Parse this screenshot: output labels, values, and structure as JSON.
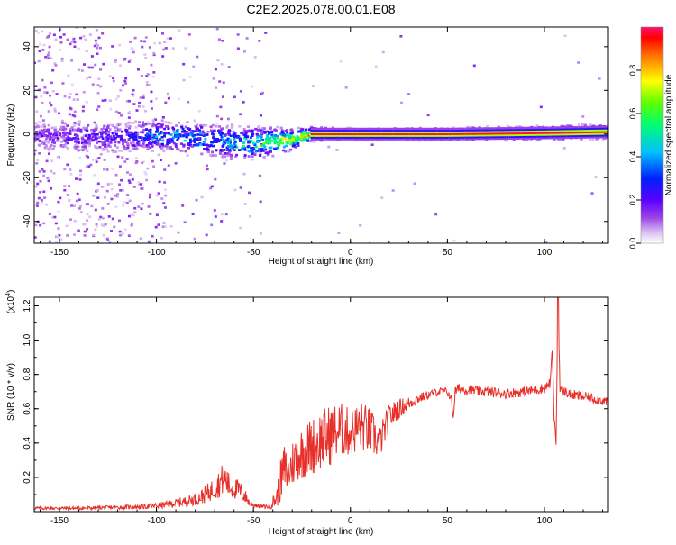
{
  "title": "C2E2.2025.078.00.01.E08",
  "chart_data": [
    {
      "type": "heatmap",
      "xlabel": "Height of straight line (km)",
      "ylabel": "Frequency (Hz)",
      "xlim": [
        -163,
        133
      ],
      "ylim": [
        -50,
        49
      ],
      "xticks": [
        -150,
        -100,
        -50,
        0,
        50,
        100
      ],
      "yticks": [
        -40,
        -20,
        0,
        20,
        40
      ],
      "colorbar": {
        "label": "Normalized spectral amplitude",
        "range": [
          0.0,
          1.0
        ],
        "ticks": [
          "0.0",
          "0.2",
          "0.4",
          "0.6",
          "0.8"
        ],
        "colormap": [
          "#ffffff",
          "#c9a8f0",
          "#8a2be2",
          "#4b00ff",
          "#0040ff",
          "#00c8ff",
          "#00ff80",
          "#60ff00",
          "#ffff00",
          "#ff8000",
          "#ff0000",
          "#ff1060"
        ]
      },
      "ridge": [
        {
          "x": -163,
          "y": -1,
          "amp": 0.2
        },
        {
          "x": -140,
          "y": -1,
          "amp": 0.25
        },
        {
          "x": -120,
          "y": -1.5,
          "amp": 0.3
        },
        {
          "x": -100,
          "y": -0.5,
          "amp": 0.45
        },
        {
          "x": -80,
          "y": -2,
          "amp": 0.5
        },
        {
          "x": -60,
          "y": -4,
          "amp": 0.55
        },
        {
          "x": -45,
          "y": -4,
          "amp": 0.7
        },
        {
          "x": -30,
          "y": -2.5,
          "amp": 0.85
        },
        {
          "x": -20,
          "y": 0,
          "amp": 0.95
        },
        {
          "x": 0,
          "y": 0,
          "amp": 1.0
        },
        {
          "x": 50,
          "y": 0,
          "amp": 1.0
        },
        {
          "x": 100,
          "y": 0.5,
          "amp": 0.95
        },
        {
          "x": 133,
          "y": 1,
          "amp": 0.9
        }
      ],
      "spread": [
        {
          "x": -163,
          "y": 5
        },
        {
          "x": -100,
          "y": 5
        },
        {
          "x": -50,
          "y": 5
        },
        {
          "x": -30,
          "y": 3
        },
        {
          "x": -20,
          "y": 2
        },
        {
          "x": 0,
          "y": 1.5
        },
        {
          "x": 133,
          "y": 2
        }
      ]
    },
    {
      "type": "line",
      "xlabel": "Height of straight line (km)",
      "ylabel": "SNR (10 * v/v)",
      "yscale_label": "(x10",
      "yscale_exp": "4",
      "ylabel_suffix": ")",
      "xlim": [
        -163,
        133
      ],
      "ylim": [
        0,
        1.25
      ],
      "xticks": [
        -150,
        -100,
        -50,
        0,
        50,
        100
      ],
      "yticks": [
        0.2,
        0.4,
        0.6,
        0.8,
        1.0,
        1.2
      ],
      "color": "#e8302a",
      "series": [
        {
          "x": [
            -163,
            -140,
            -120,
            -105,
            -95,
            -85,
            -78,
            -72,
            -68,
            -65,
            -62,
            -58,
            -55,
            -52,
            -50,
            -46,
            -42,
            -38,
            -36,
            -34,
            -32,
            -30,
            -27,
            -24,
            -20,
            -15,
            -10,
            -5,
            0,
            5,
            10,
            15,
            20,
            25,
            30,
            35,
            40,
            45,
            50,
            52,
            53,
            54,
            56,
            60,
            70,
            80,
            90,
            95,
            100,
            103,
            104,
            105,
            106,
            107,
            108,
            110,
            115,
            120,
            125,
            133
          ],
          "y": [
            0.02,
            0.02,
            0.025,
            0.03,
            0.04,
            0.06,
            0.08,
            0.12,
            0.16,
            0.2,
            0.14,
            0.13,
            0.1,
            0.05,
            0.04,
            0.03,
            0.03,
            0.08,
            0.18,
            0.25,
            0.22,
            0.28,
            0.33,
            0.35,
            0.38,
            0.42,
            0.45,
            0.48,
            0.46,
            0.5,
            0.47,
            0.4,
            0.55,
            0.6,
            0.63,
            0.66,
            0.68,
            0.7,
            0.7,
            0.66,
            0.55,
            0.7,
            0.72,
            0.71,
            0.7,
            0.69,
            0.7,
            0.71,
            0.72,
            0.75,
            0.95,
            0.55,
            0.4,
            1.25,
            0.72,
            0.7,
            0.68,
            0.67,
            0.66,
            0.64
          ],
          "noise": [
            0.01,
            0.01,
            0.012,
            0.015,
            0.02,
            0.03,
            0.04,
            0.06,
            0.08,
            0.1,
            0.07,
            0.06,
            0.05,
            0.02,
            0.015,
            0.01,
            0.015,
            0.06,
            0.12,
            0.15,
            0.12,
            0.14,
            0.15,
            0.16,
            0.17,
            0.18,
            0.18,
            0.16,
            0.14,
            0.15,
            0.14,
            0.1,
            0.08,
            0.06,
            0.04,
            0.03,
            0.025,
            0.025,
            0.025,
            0.02,
            0.02,
            0.03,
            0.03,
            0.03,
            0.03,
            0.03,
            0.03,
            0.03,
            0.03,
            0.03,
            0.02,
            0.02,
            0.02,
            0.02,
            0.03,
            0.03,
            0.03,
            0.03,
            0.03,
            0.03
          ]
        }
      ]
    }
  ]
}
